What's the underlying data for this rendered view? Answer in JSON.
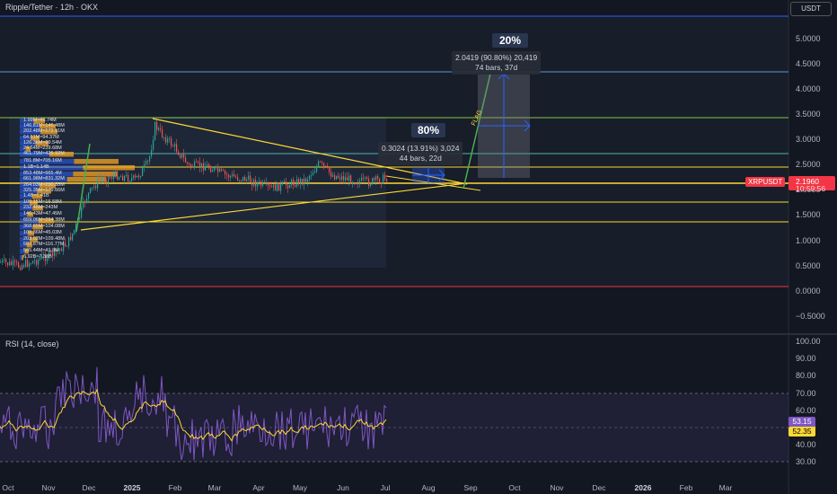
{
  "header": {
    "title": "Ripple/Tether · 12h · OKX",
    "currency": "USDT"
  },
  "price_axis": {
    "ticks": [
      "5.0000",
      "4.5000",
      "4.0000",
      "3.5000",
      "3.0000",
      "2.5000",
      "2.0000",
      "1.5000",
      "1.0000",
      "0.5000",
      "0.0000",
      "−0.5000"
    ],
    "symbol_tag": "XRPUSDT",
    "last_price": "2.1960",
    "countdown": "10:59:56"
  },
  "time_axis": {
    "labels": [
      "Oct",
      "Nov",
      "Dec",
      "2025",
      "Feb",
      "Mar",
      "Apr",
      "May",
      "Jun",
      "Jul",
      "Aug",
      "Sep",
      "Oct",
      "Nov",
      "Dec",
      "2026",
      "Feb",
      "Mar"
    ]
  },
  "projections": {
    "short": {
      "percent_label": "80%",
      "line1": "0.3024 (13.91%) 3,024",
      "line2": "44 bars, 22d"
    },
    "long": {
      "percent_label": "20%",
      "line1": "2.0419 (90.80%) 20,419",
      "line2": "74 bars, 37d"
    },
    "flag_text": "FLAG"
  },
  "volume_profile": {
    "labels": [
      "1.99M≈46.74M",
      "146.81M≈146.48M",
      "202.48M≈172.51M",
      "64.51M≈94.37M",
      "126.38M≈99.54M",
      "24.64M≈239.68M",
      "461.79M≈426.92M",
      "781.8M≈705.16M",
      "1.1B≈1.14B",
      "853.48M≈965.4M",
      "661.98M≈831.32M",
      "264.03M≈290.88M",
      "325.35M≈179.66M",
      "1.4B≈1.41B",
      "100.15M≈16.58M",
      "232.48M≈243M",
      "146.43M≈47.45M",
      "659.06M≈264.38M",
      "368.65M≈104.08M",
      "109.36M≈45.03M",
      "203.92M≈109.48M",
      "507.87M≈116.77M",
      "565.44M≈41.8M",
      "6.92B≈7.38B"
    ]
  },
  "rsi": {
    "title": "RSI (14, close)",
    "ticks": [
      "100.00",
      "90.00",
      "80.00",
      "70.00",
      "60.00",
      "50.00",
      "40.00",
      "30.00"
    ],
    "rsi_value": "53.15",
    "ma_value": "52.35"
  },
  "colors": {
    "background": "#131722",
    "candle_up": "#26a69a",
    "candle_down": "#ef5350",
    "rsi_line": "#7e57c2",
    "rsi_ma": "#fdd835",
    "projection_green": "#4caf50",
    "horizontal_yellow": "#fdd835",
    "horizontal_blue": "#2962ff",
    "horizontal_red": "#f23645",
    "projection_blue": "#2962ff"
  }
}
